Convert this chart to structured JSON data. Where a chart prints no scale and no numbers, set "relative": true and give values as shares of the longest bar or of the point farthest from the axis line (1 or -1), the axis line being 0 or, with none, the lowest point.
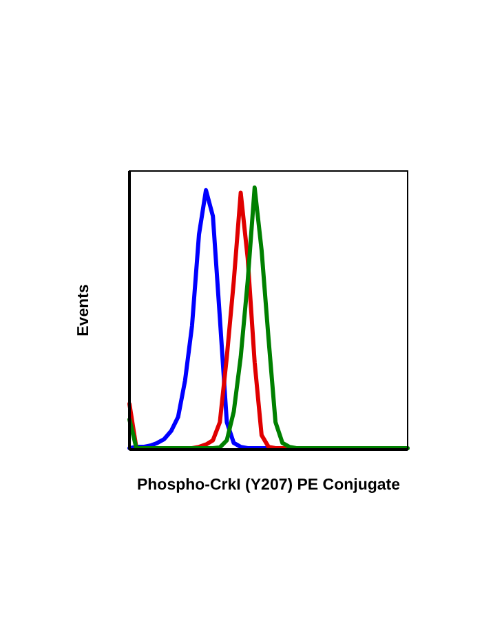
{
  "chart_data": {
    "type": "line",
    "relative": true,
    "xlabel": "Phospho-CrkI (Y207) PE Conjugate",
    "ylabel": "Events",
    "line_style": "solid",
    "marker": "none",
    "categories": [
      null,
      null,
      null,
      null,
      null,
      null,
      null,
      null,
      null,
      null,
      null,
      null,
      null,
      null,
      null,
      null,
      null,
      null,
      null,
      null,
      null,
      null,
      null,
      null,
      null,
      null,
      null,
      null,
      null,
      null,
      null,
      null,
      null,
      null,
      null,
      null,
      null,
      null,
      null,
      null,
      null
    ],
    "series": [
      {
        "color": "#0000ff",
        "values": [
          0,
          0.005,
          0.005,
          0.01,
          0.02,
          0.035,
          0.066,
          0.12,
          0.26,
          0.47,
          0.82,
          0.99,
          0.89,
          0.5,
          0.1,
          0.02,
          0.005,
          0,
          0,
          0,
          0,
          0,
          null,
          null,
          null,
          null,
          null,
          null,
          null,
          null,
          null,
          null,
          null,
          null,
          null,
          null,
          null,
          null,
          null,
          null,
          null
        ]
      },
      {
        "color": "#e00000",
        "values": [
          0.17,
          0,
          null,
          null,
          null,
          null,
          null,
          null,
          null,
          0,
          0.005,
          0.014,
          0.03,
          0.1,
          0.35,
          0.64,
          0.98,
          0.73,
          0.33,
          0.05,
          0.005,
          0,
          0,
          0,
          null,
          null,
          null,
          null,
          null,
          null,
          null,
          null,
          null,
          null,
          null,
          null,
          null,
          null,
          null,
          null,
          null
        ]
      },
      {
        "color": "#008000",
        "values": [
          0.11,
          0,
          0,
          0,
          0,
          0,
          0,
          0,
          0,
          0,
          0,
          0,
          0,
          0.003,
          0.03,
          0.14,
          0.35,
          0.64,
          1,
          0.76,
          0.42,
          0.1,
          0.02,
          0.005,
          0,
          0,
          0,
          0,
          0,
          0,
          0,
          0,
          0,
          0,
          0,
          0,
          0,
          0,
          0,
          0,
          0
        ]
      }
    ]
  }
}
